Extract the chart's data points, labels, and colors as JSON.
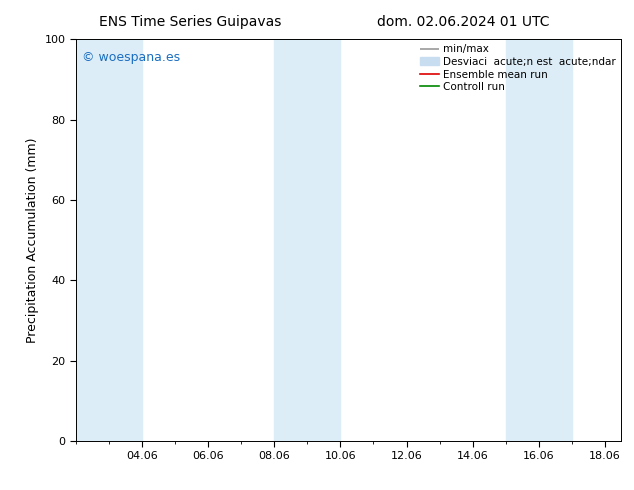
{
  "title_left": "ENS Time Series Guipavas",
  "title_right": "dom. 02.06.2024 01 UTC",
  "ylabel": "Precipitation Accumulation (mm)",
  "ylim": [
    0,
    100
  ],
  "yticks": [
    0,
    20,
    40,
    60,
    80,
    100
  ],
  "xtick_labels": [
    "04.06",
    "06.06",
    "08.06",
    "10.06",
    "12.06",
    "14.06",
    "16.06",
    "18.06"
  ],
  "xtick_positions": [
    4,
    6,
    8,
    10,
    12,
    14,
    16,
    18
  ],
  "xlim": [
    2.0,
    18.5
  ],
  "watermark": "© woespana.es",
  "watermark_color": "#1a6ec0",
  "shaded_regions": [
    {
      "xstart": 2.0,
      "xend": 4.0
    },
    {
      "xstart": 8.0,
      "xend": 10.0
    },
    {
      "xstart": 15.0,
      "xend": 17.0
    }
  ],
  "shade_color": "#ddedf8",
  "legend_minmax_color": "#999999",
  "legend_std_color": "#c8ddf0",
  "legend_mean_color": "#dd0000",
  "legend_ctrl_color": "#008800",
  "legend_label_minmax": "min/max",
  "legend_label_std": "Desviaci  acute;n est  acute;ndar",
  "legend_label_mean": "Ensemble mean run",
  "legend_label_ctrl": "Controll run",
  "bg_color": "#ffffff",
  "title_fontsize": 10,
  "ylabel_fontsize": 9,
  "tick_fontsize": 8,
  "legend_fontsize": 7.5,
  "watermark_fontsize": 9
}
